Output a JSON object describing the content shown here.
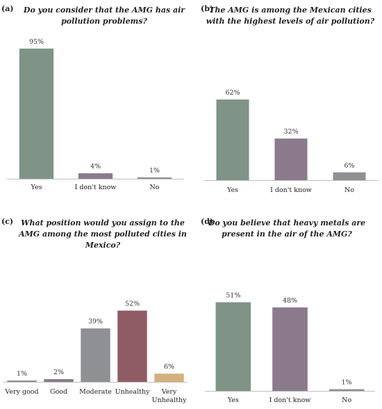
{
  "colors": {
    "green": "#7f9487",
    "purple": "#8b7a8c",
    "gray": "#8e9094",
    "maroon": "#8f5b64",
    "tan": "#d4b07f",
    "axis": "#bfbfbf"
  },
  "chart_data": [
    {
      "panel": "(a)",
      "type": "bar",
      "title": [
        "Do you consider that the AMG has air",
        "pollution problems?"
      ],
      "categories": [
        [
          "Yes"
        ],
        [
          "I don't know"
        ],
        [
          "No"
        ]
      ],
      "values": [
        95,
        4,
        1
      ],
      "value_labels": [
        "95%",
        "4%",
        "1%"
      ],
      "colors": [
        "#7f9487",
        "#8b7a8c",
        "#8e9094"
      ],
      "ylim": [
        0,
        100
      ]
    },
    {
      "panel": "(b)",
      "type": "bar",
      "title": [
        "The AMG is among the Mexican cities",
        "with the highest levels of air pollution?"
      ],
      "categories": [
        [
          "Yes"
        ],
        [
          "I don't know"
        ],
        [
          "No"
        ]
      ],
      "values": [
        62,
        32,
        6
      ],
      "value_labels": [
        "62%",
        "32%",
        "6%"
      ],
      "colors": [
        "#7f9487",
        "#8b7a8c",
        "#8e9094"
      ],
      "ylim": [
        0,
        100
      ]
    },
    {
      "panel": "(c)",
      "type": "bar",
      "title": [
        "What position would you assign to the",
        "AMG among the most polluted cities in",
        "Mexico?"
      ],
      "categories": [
        [
          "Very good"
        ],
        [
          "Good"
        ],
        [
          "Moderate"
        ],
        [
          "Unhealthy"
        ],
        [
          "Very",
          "Unhealthy"
        ]
      ],
      "values": [
        1,
        2,
        39,
        52,
        6
      ],
      "value_labels": [
        "1%",
        "2%",
        "39%",
        "52%",
        "6%"
      ],
      "colors": [
        "#8e9094",
        "#8b7a8c",
        "#8e9094",
        "#8f5b64",
        "#d4b07f"
      ],
      "ylim": [
        0,
        100
      ]
    },
    {
      "panel": "(d)",
      "type": "bar",
      "title": [
        "Do you believe that heavy metals are",
        "present in the air of the AMG?"
      ],
      "categories": [
        [
          "Yes"
        ],
        [
          "I don't know"
        ],
        [
          "No"
        ]
      ],
      "values": [
        51,
        48,
        1
      ],
      "value_labels": [
        "51%",
        "48%",
        "1%"
      ],
      "colors": [
        "#7f9487",
        "#8b7a8c",
        "#8e9094"
      ],
      "ylim": [
        0,
        100
      ]
    }
  ]
}
